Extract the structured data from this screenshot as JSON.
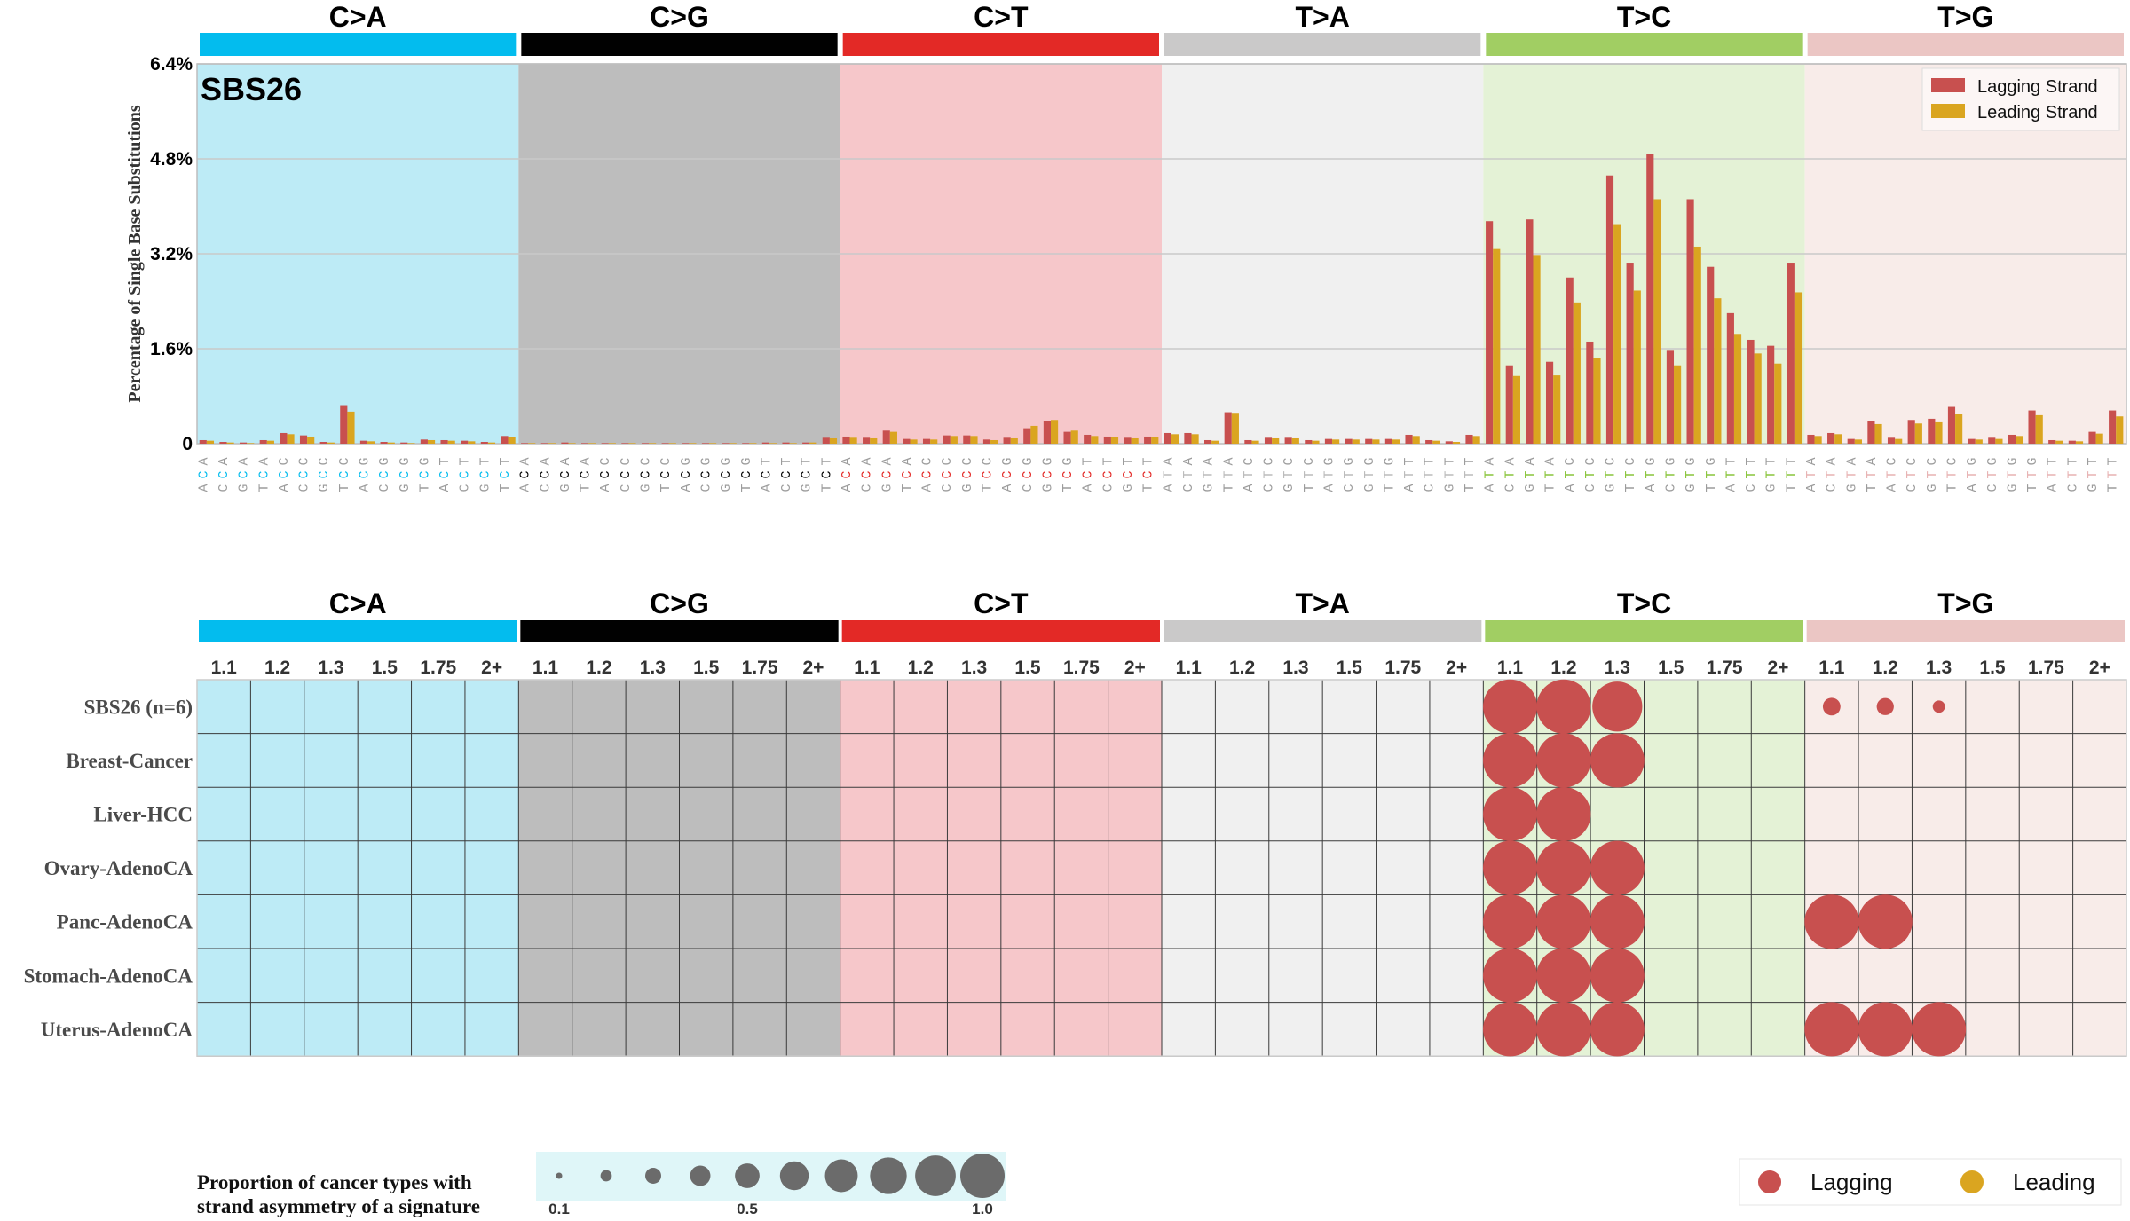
{
  "colors": {
    "mutation_bars": [
      "#03bcee",
      "#010101",
      "#e32926",
      "#cac9c9",
      "#a1ce63",
      "#ebc6c4"
    ],
    "panel_backgrounds": [
      "#bdebf6",
      "#bdbdbd",
      "#f6c7ca",
      "#f0f0f0",
      "#e4f2d6",
      "#f8ece9"
    ],
    "context_highlight": [
      "#03bcee",
      "#000000",
      "#e32926",
      "#bcbcbc",
      "#8cc63f",
      "#e8b4b4"
    ],
    "lagging": "#c8504f",
    "leading": "#daa520",
    "grid": "#c9c9c9",
    "size_legend_bg": "#dff6f8",
    "size_legend_dot": "#6b6b6b"
  },
  "chart_data": [
    {
      "type": "bar",
      "title": "SBS26",
      "ylabel": "Percentage of Single Base Substitutions",
      "ylim": [
        0,
        6.4
      ],
      "yticks": [
        "0",
        "1.6%",
        "3.2%",
        "4.8%",
        "6.4%"
      ],
      "ytick_values": [
        0,
        1.6,
        3.2,
        4.8,
        6.4
      ],
      "grid": true,
      "legend_position": "top-right",
      "mutation_types": [
        "C>A",
        "C>G",
        "C>T",
        "T>A",
        "T>C",
        "T>G"
      ],
      "contexts": [
        "A_A",
        "A_C",
        "A_G",
        "A_T",
        "C_A",
        "C_C",
        "C_G",
        "C_T",
        "G_A",
        "G_C",
        "G_G",
        "G_T",
        "T_A",
        "T_C",
        "T_G",
        "T_T"
      ],
      "series": [
        {
          "name": "Lagging Strand",
          "values": [
            [
              0.06,
              0.03,
              0.02,
              0.06,
              0.18,
              0.14,
              0.03,
              0.65,
              0.05,
              0.03,
              0.02,
              0.07,
              0.06,
              0.05,
              0.03,
              0.13
            ],
            [
              0.01,
              0.01,
              0.02,
              0.01,
              0.01,
              0.01,
              0.01,
              0.01,
              0.01,
              0.01,
              0.01,
              0.01,
              0.02,
              0.02,
              0.02,
              0.1
            ],
            [
              0.12,
              0.1,
              0.22,
              0.08,
              0.08,
              0.14,
              0.14,
              0.07,
              0.1,
              0.26,
              0.38,
              0.2,
              0.15,
              0.12,
              0.1,
              0.12
            ],
            [
              0.18,
              0.18,
              0.06,
              0.53,
              0.06,
              0.1,
              0.1,
              0.06,
              0.08,
              0.08,
              0.08,
              0.08,
              0.15,
              0.06,
              0.04,
              0.15
            ],
            [
              3.75,
              1.32,
              3.78,
              1.38,
              2.8,
              1.72,
              4.52,
              3.05,
              4.88,
              1.58,
              4.12,
              2.98,
              2.2,
              1.75,
              1.65,
              3.05
            ],
            [
              0.15,
              0.18,
              0.08,
              0.38,
              0.1,
              0.4,
              0.42,
              0.62,
              0.08,
              0.1,
              0.15,
              0.56,
              0.06,
              0.05,
              0.2,
              0.56
            ]
          ]
        },
        {
          "name": "Leading Strand",
          "values": [
            [
              0.05,
              0.02,
              0.01,
              0.05,
              0.16,
              0.12,
              0.02,
              0.54,
              0.04,
              0.02,
              0.01,
              0.06,
              0.05,
              0.04,
              0.02,
              0.11
            ],
            [
              0.01,
              0.01,
              0.01,
              0.01,
              0.01,
              0.01,
              0.01,
              0.01,
              0.01,
              0.01,
              0.01,
              0.01,
              0.01,
              0.01,
              0.02,
              0.09
            ],
            [
              0.1,
              0.09,
              0.2,
              0.07,
              0.07,
              0.13,
              0.13,
              0.06,
              0.09,
              0.3,
              0.4,
              0.22,
              0.13,
              0.11,
              0.09,
              0.11
            ],
            [
              0.16,
              0.16,
              0.05,
              0.52,
              0.05,
              0.09,
              0.09,
              0.05,
              0.07,
              0.07,
              0.07,
              0.07,
              0.13,
              0.05,
              0.03,
              0.13
            ],
            [
              3.28,
              1.14,
              3.18,
              1.15,
              2.38,
              1.45,
              3.7,
              2.58,
              4.12,
              1.32,
              3.32,
              2.45,
              1.85,
              1.52,
              1.35,
              2.55
            ],
            [
              0.13,
              0.16,
              0.07,
              0.33,
              0.08,
              0.34,
              0.36,
              0.5,
              0.07,
              0.08,
              0.13,
              0.48,
              0.05,
              0.04,
              0.17,
              0.46
            ]
          ]
        }
      ]
    },
    {
      "type": "scatter",
      "columns": [
        "1.1",
        "1.2",
        "1.3",
        "1.5",
        "1.75",
        "2+"
      ],
      "rows": [
        "SBS26 (n=6)",
        "Breast-Cancer",
        "Liver-HCC",
        "Ovary-AdenoCA",
        "Panc-AdenoCA",
        "Stomach-AdenoCA",
        "Uterus-AdenoCA"
      ],
      "size_legend_title": [
        "Proportion of cancer types with",
        "strand asymmetry of a signature"
      ],
      "size_legend_values": [
        0.1,
        0.2,
        0.3,
        0.4,
        0.5,
        0.6,
        0.7,
        0.8,
        0.9,
        1.0
      ],
      "size_legend_labels": [
        "0.1",
        "0.5",
        "1.0"
      ],
      "strand_legend": [
        "Lagging",
        "Leading"
      ],
      "points": [
        {
          "row": 0,
          "type": 4,
          "col": 0,
          "strand": "lagging",
          "value": 1.0
        },
        {
          "row": 0,
          "type": 4,
          "col": 1,
          "strand": "lagging",
          "value": 1.0
        },
        {
          "row": 0,
          "type": 4,
          "col": 2,
          "strand": "lagging",
          "value": 0.85
        },
        {
          "row": 0,
          "type": 5,
          "col": 0,
          "strand": "lagging",
          "value": 0.35
        },
        {
          "row": 0,
          "type": 5,
          "col": 1,
          "strand": "lagging",
          "value": 0.33
        },
        {
          "row": 0,
          "type": 5,
          "col": 2,
          "strand": "lagging",
          "value": 0.17
        },
        {
          "row": 1,
          "type": 4,
          "col": 0,
          "strand": "lagging",
          "value": 1.0
        },
        {
          "row": 1,
          "type": 4,
          "col": 1,
          "strand": "lagging",
          "value": 1.0
        },
        {
          "row": 1,
          "type": 4,
          "col": 2,
          "strand": "lagging",
          "value": 1.0
        },
        {
          "row": 2,
          "type": 4,
          "col": 0,
          "strand": "lagging",
          "value": 1.0
        },
        {
          "row": 2,
          "type": 4,
          "col": 1,
          "strand": "lagging",
          "value": 1.0
        },
        {
          "row": 3,
          "type": 4,
          "col": 0,
          "strand": "lagging",
          "value": 1.0
        },
        {
          "row": 3,
          "type": 4,
          "col": 1,
          "strand": "lagging",
          "value": 1.0
        },
        {
          "row": 3,
          "type": 4,
          "col": 2,
          "strand": "lagging",
          "value": 1.0
        },
        {
          "row": 4,
          "type": 4,
          "col": 0,
          "strand": "lagging",
          "value": 1.0
        },
        {
          "row": 4,
          "type": 4,
          "col": 1,
          "strand": "lagging",
          "value": 1.0
        },
        {
          "row": 4,
          "type": 4,
          "col": 2,
          "strand": "lagging",
          "value": 1.0
        },
        {
          "row": 4,
          "type": 5,
          "col": 0,
          "strand": "lagging",
          "value": 1.0
        },
        {
          "row": 4,
          "type": 5,
          "col": 1,
          "strand": "lagging",
          "value": 1.0
        },
        {
          "row": 5,
          "type": 4,
          "col": 0,
          "strand": "lagging",
          "value": 1.0
        },
        {
          "row": 5,
          "type": 4,
          "col": 1,
          "strand": "lagging",
          "value": 1.0
        },
        {
          "row": 5,
          "type": 4,
          "col": 2,
          "strand": "lagging",
          "value": 1.0
        },
        {
          "row": 6,
          "type": 4,
          "col": 0,
          "strand": "lagging",
          "value": 1.0
        },
        {
          "row": 6,
          "type": 4,
          "col": 1,
          "strand": "lagging",
          "value": 1.0
        },
        {
          "row": 6,
          "type": 4,
          "col": 2,
          "strand": "lagging",
          "value": 1.0
        },
        {
          "row": 6,
          "type": 5,
          "col": 0,
          "strand": "lagging",
          "value": 1.0
        },
        {
          "row": 6,
          "type": 5,
          "col": 1,
          "strand": "lagging",
          "value": 1.0
        },
        {
          "row": 6,
          "type": 5,
          "col": 2,
          "strand": "lagging",
          "value": 1.0
        }
      ]
    }
  ]
}
